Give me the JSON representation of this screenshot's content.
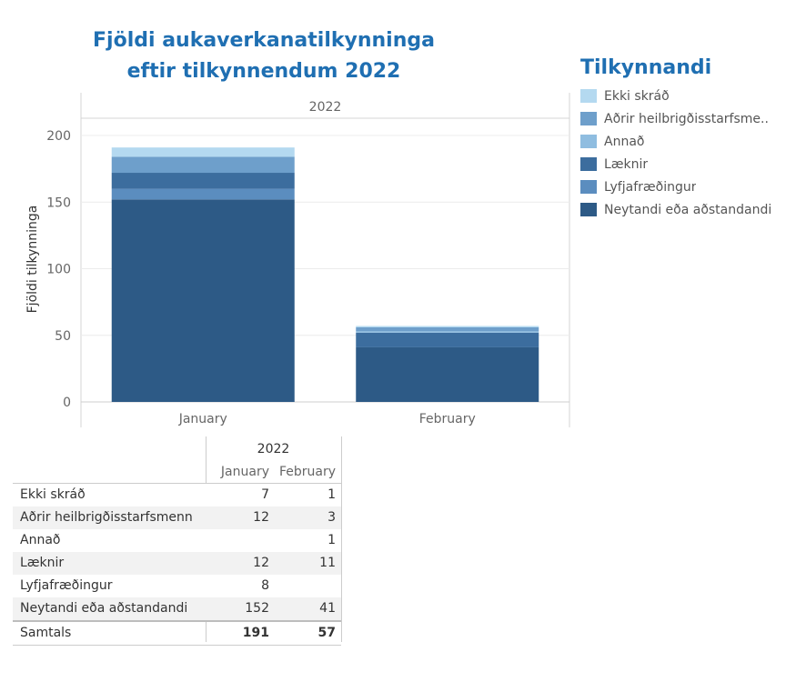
{
  "chart_data": {
    "type": "bar",
    "title": "Fjöldi aukaverkanatilkynninga eftir tilkynnendum 2022",
    "column_header": "2022",
    "ylabel": "Fjöldi tilkynninga",
    "xlabel": "",
    "ylim": [
      0,
      205
    ],
    "yticks": [
      0,
      50,
      100,
      150,
      200
    ],
    "grid": true,
    "stacked": true,
    "categories": [
      "January",
      "February"
    ],
    "legend_title": "Tilkynnandi",
    "legend_position": "right",
    "series": [
      {
        "name": "Neytandi eða aðstandandi",
        "legend_label": "Neytandi eða aðstandandi",
        "color": "#2d5a86",
        "values": [
          152,
          41
        ]
      },
      {
        "name": "Lyfjafræðingur",
        "legend_label": "Lyfjafræðingur",
        "color": "#5b8dbf",
        "values": [
          8,
          0
        ]
      },
      {
        "name": "Læknir",
        "legend_label": "Læknir",
        "color": "#3c6d9e",
        "values": [
          12,
          11
        ]
      },
      {
        "name": "Annað",
        "legend_label": "Annað",
        "color": "#8fbde0",
        "values": [
          0,
          1
        ]
      },
      {
        "name": "Aðrir heilbrigðisstarfsmenn",
        "legend_label": "Aðrir heilbrigðisstarfsme..",
        "color": "#6e9fcb",
        "values": [
          12,
          3
        ]
      },
      {
        "name": "Ekki skráð",
        "legend_label": "Ekki skráð",
        "color": "#b4d9f0",
        "values": [
          7,
          1
        ]
      }
    ],
    "legend_order": [
      5,
      4,
      3,
      2,
      1,
      0
    ]
  },
  "table": {
    "header": "2022",
    "columns": [
      "January",
      "February"
    ],
    "rows": [
      {
        "label": "Ekki skráð",
        "jan": "7",
        "feb": "1"
      },
      {
        "label": "Aðrir heilbrigðisstarfsmenn",
        "jan": "12",
        "feb": "3"
      },
      {
        "label": "Annað",
        "jan": "",
        "feb": "1"
      },
      {
        "label": "Læknir",
        "jan": "12",
        "feb": "11"
      },
      {
        "label": "Lyfjafræðingur",
        "jan": "8",
        "feb": ""
      },
      {
        "label": "Neytandi eða aðstandandi",
        "jan": "152",
        "feb": "41"
      }
    ],
    "total": {
      "label": "Samtals",
      "jan": "191",
      "feb": "57"
    }
  }
}
